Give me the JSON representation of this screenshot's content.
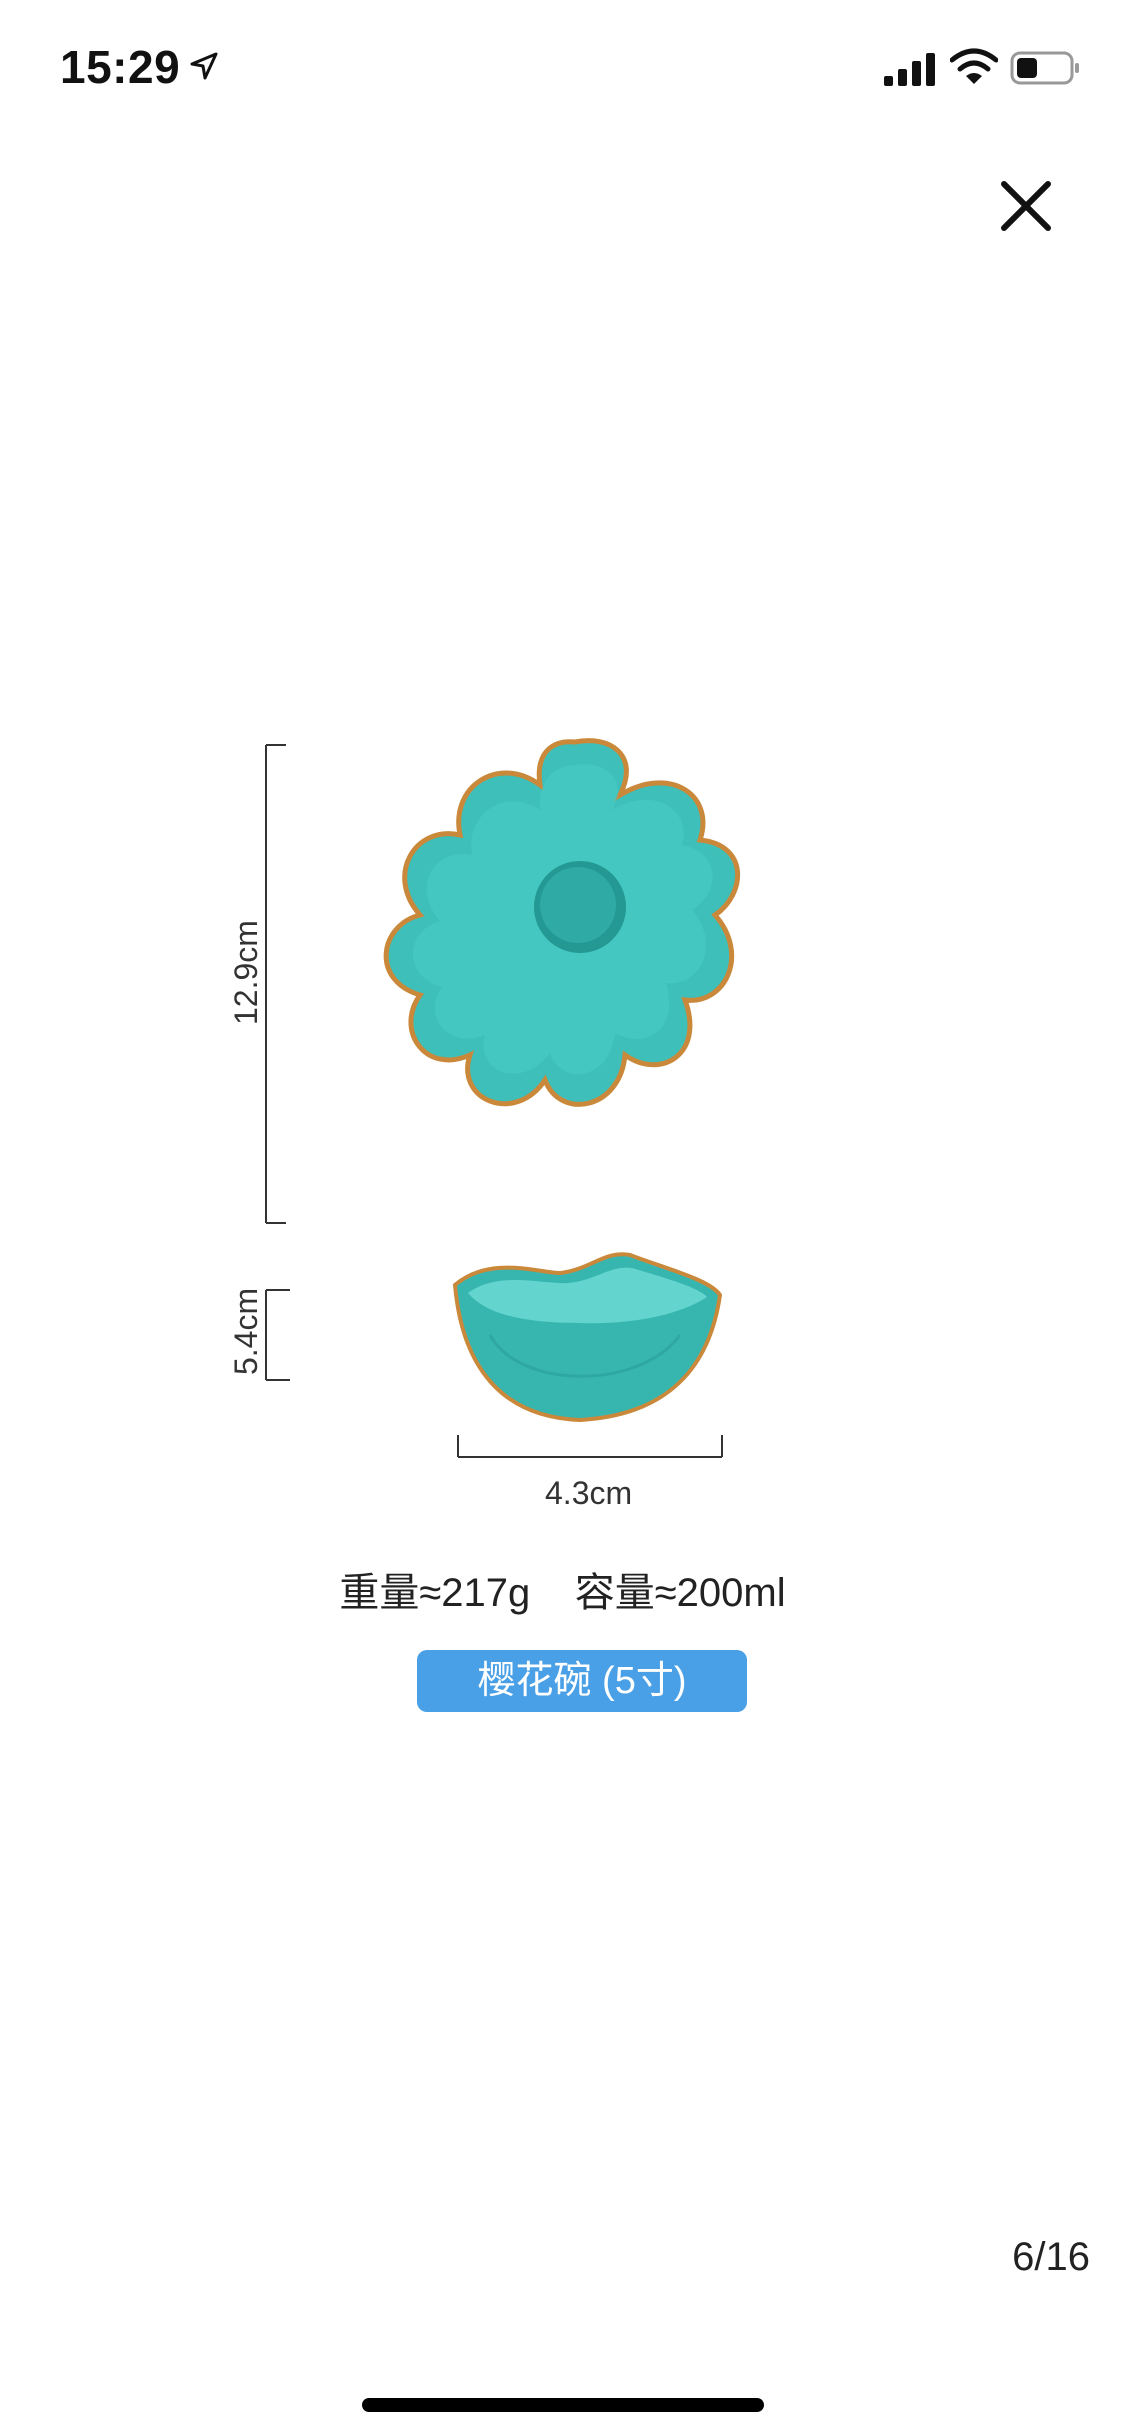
{
  "status": {
    "time": "15:29",
    "icons": [
      "location-arrow-icon",
      "cellular-signal-icon",
      "wifi-icon",
      "battery-icon"
    ]
  },
  "viewer": {
    "close_icon": "close-icon",
    "page_counter": "6/16"
  },
  "product": {
    "height_label": "12.9cm",
    "depth_label": "5.4cm",
    "base_label": "4.3cm",
    "spec_text": "重量≈217g    容量≈200ml",
    "variant_label": "樱花碗 (5寸)"
  },
  "colors": {
    "bowl_teal": "#3fbfb9",
    "bowl_dark": "#1f8f8a",
    "rim_gold": "#c9883a",
    "badge_blue": "#4aa0e6"
  }
}
